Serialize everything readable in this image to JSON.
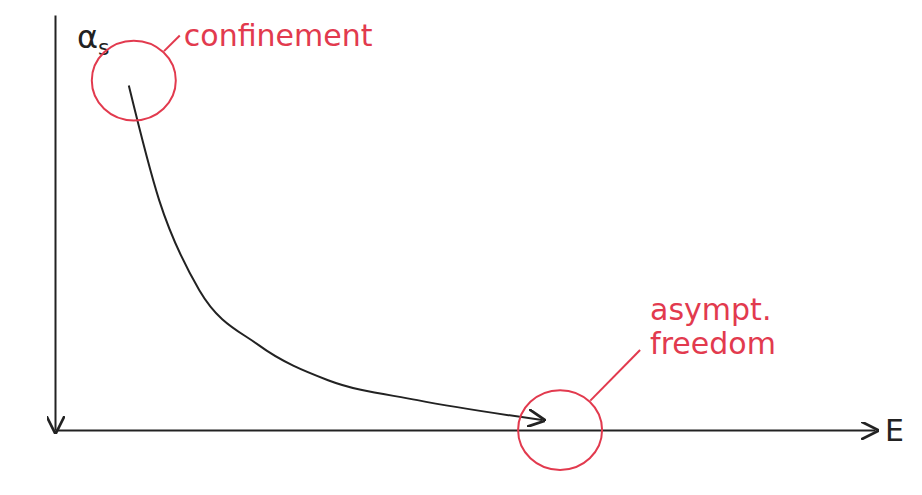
{
  "chart_data": {
    "type": "line",
    "x": [
      0.9,
      1.27,
      1.76,
      2.48,
      3.33,
      4.42,
      5.94
    ],
    "values": [
      8.3,
      5.54,
      3.37,
      2.05,
      1.2,
      0.72,
      0.24
    ],
    "xlim": [
      0,
      10
    ],
    "ylim": [
      0,
      10
    ],
    "xticks": [],
    "yticks": [],
    "tick_labels": false,
    "color": "#222222",
    "x_label": "E",
    "y_label": "αs",
    "annotations": [
      {
        "text": "confinement",
        "color": "#e23a4e"
      },
      {
        "text": "asympt. freedom",
        "color": "#e23a4e"
      }
    ]
  }
}
